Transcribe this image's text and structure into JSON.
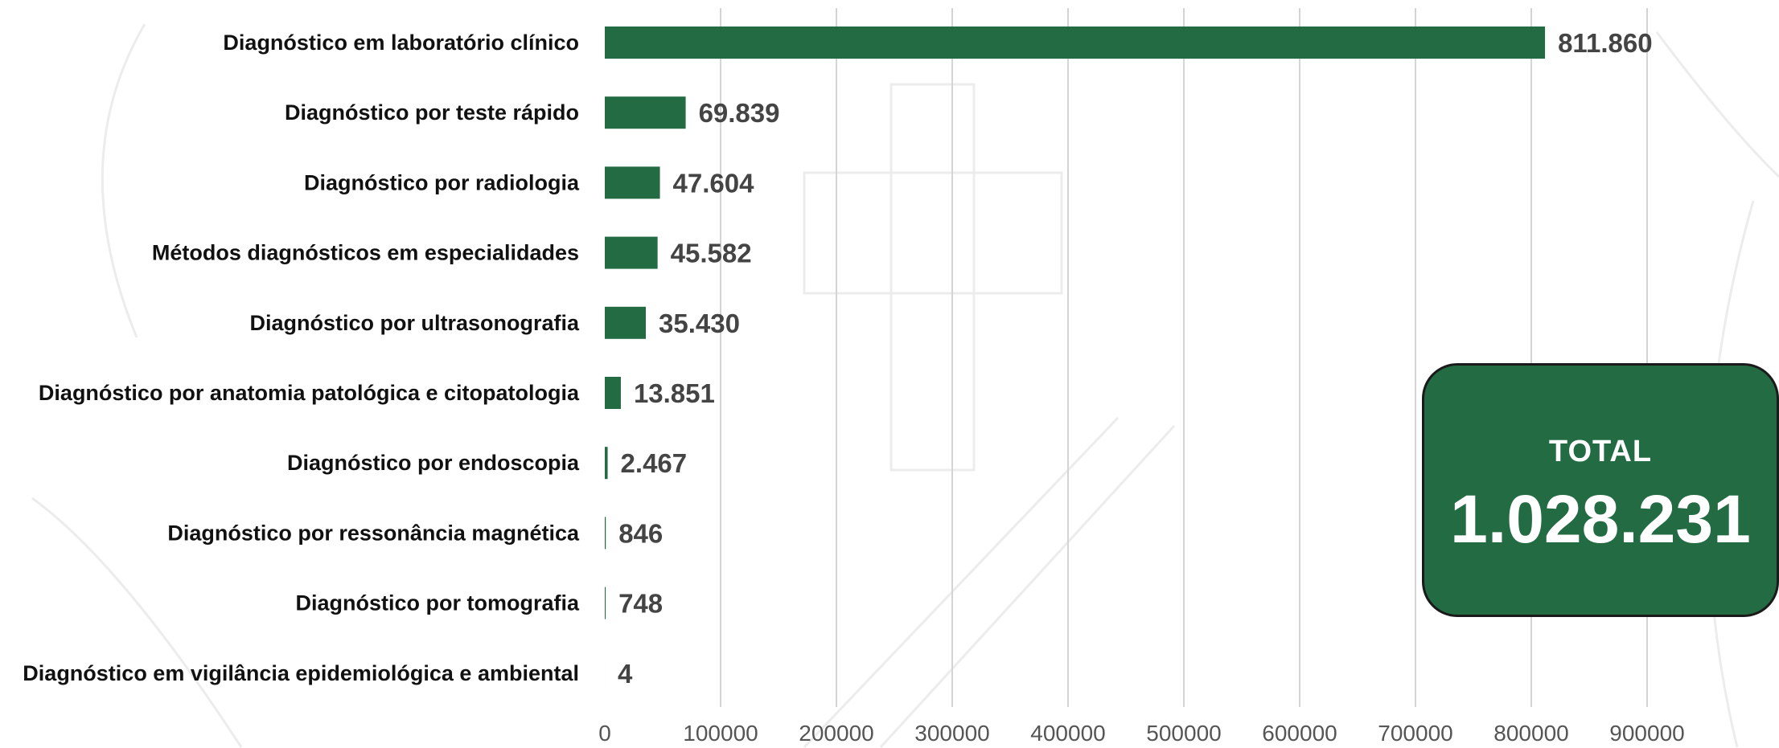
{
  "chart_data": {
    "type": "bar",
    "orientation": "horizontal",
    "categories": [
      "Diagnóstico em laboratório clínico",
      "Diagnóstico por teste rápido",
      "Diagnóstico por radiologia",
      "Métodos diagnósticos em especialidades",
      "Diagnóstico por ultrasonografia",
      "Diagnóstico por anatomia patológica e citopatologia",
      "Diagnóstico por endoscopia",
      "Diagnóstico por ressonância magnética",
      "Diagnóstico por tomografia",
      "Diagnóstico em vigilância epidemiológica e ambiental"
    ],
    "values": [
      811860,
      69839,
      47604,
      45582,
      35430,
      13851,
      2467,
      846,
      748,
      4
    ],
    "value_labels": [
      "811.860",
      "69.839",
      "47.604",
      "45.582",
      "35.430",
      "13.851",
      "2.467",
      "846",
      "748",
      "4"
    ],
    "xlim": [
      0,
      1000000
    ],
    "xticks": [
      0,
      100000,
      200000,
      300000,
      400000,
      500000,
      600000,
      700000,
      800000,
      900000
    ],
    "xtick_labels": [
      "0",
      "100000",
      "200000",
      "300000",
      "400000",
      "500000",
      "600000",
      "700000",
      "800000",
      "900000"
    ],
    "grid": true,
    "bar_color": "#236b43"
  },
  "total": {
    "label": "TOTAL",
    "value": "1.028.231"
  }
}
